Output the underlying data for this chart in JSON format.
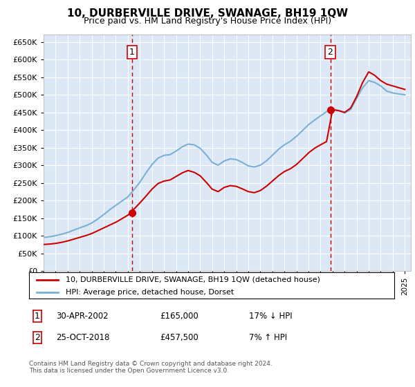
{
  "title": "10, DURBERVILLE DRIVE, SWANAGE, BH19 1QW",
  "subtitle": "Price paid vs. HM Land Registry's House Price Index (HPI)",
  "plot_bg_color": "#dce8f5",
  "ylim": [
    0,
    670000
  ],
  "yticks": [
    0,
    50000,
    100000,
    150000,
    200000,
    250000,
    300000,
    350000,
    400000,
    450000,
    500000,
    550000,
    600000,
    650000
  ],
  "sale1_date": 2002.33,
  "sale1_price": 165000,
  "sale2_date": 2018.81,
  "sale2_price": 457500,
  "legend_line1": "10, DURBERVILLE DRIVE, SWANAGE, BH19 1QW (detached house)",
  "legend_line2": "HPI: Average price, detached house, Dorset",
  "table_row1_num": "1",
  "table_row1_date": "30-APR-2002",
  "table_row1_price": "£165,000",
  "table_row1_hpi": "17% ↓ HPI",
  "table_row2_num": "2",
  "table_row2_date": "25-OCT-2018",
  "table_row2_price": "£457,500",
  "table_row2_hpi": "7% ↑ HPI",
  "footer": "Contains HM Land Registry data © Crown copyright and database right 2024.\nThis data is licensed under the Open Government Licence v3.0.",
  "line_color_red": "#cc0000",
  "line_color_blue": "#7ab0d4",
  "dashed_color": "#cc0000",
  "hpi_years": [
    1995.0,
    1995.5,
    1996.0,
    1996.5,
    1997.0,
    1997.5,
    1998.0,
    1998.5,
    1999.0,
    1999.5,
    2000.0,
    2000.5,
    2001.0,
    2001.5,
    2002.0,
    2002.5,
    2003.0,
    2003.5,
    2004.0,
    2004.5,
    2005.0,
    2005.5,
    2006.0,
    2006.5,
    2007.0,
    2007.5,
    2008.0,
    2008.5,
    2009.0,
    2009.5,
    2010.0,
    2010.5,
    2011.0,
    2011.5,
    2012.0,
    2012.5,
    2013.0,
    2013.5,
    2014.0,
    2014.5,
    2015.0,
    2015.5,
    2016.0,
    2016.5,
    2017.0,
    2017.5,
    2018.0,
    2018.5,
    2019.0,
    2019.5,
    2020.0,
    2020.5,
    2021.0,
    2021.5,
    2022.0,
    2022.5,
    2023.0,
    2023.5,
    2024.0,
    2024.5,
    2025.0
  ],
  "hpi_values": [
    95000,
    97000,
    100000,
    104000,
    109000,
    116000,
    122000,
    128000,
    136000,
    147000,
    160000,
    174000,
    186000,
    198000,
    210000,
    230000,
    252000,
    278000,
    302000,
    320000,
    328000,
    330000,
    340000,
    352000,
    360000,
    358000,
    348000,
    330000,
    308000,
    300000,
    312000,
    318000,
    316000,
    308000,
    298000,
    295000,
    300000,
    312000,
    328000,
    345000,
    358000,
    368000,
    382000,
    398000,
    415000,
    428000,
    440000,
    452000,
    460000,
    455000,
    448000,
    458000,
    490000,
    520000,
    540000,
    535000,
    525000,
    510000,
    505000,
    502000,
    500000
  ],
  "red_values": [
    75000,
    76000,
    78000,
    81000,
    85000,
    90000,
    95000,
    100000,
    106000,
    114000,
    122000,
    130000,
    138000,
    148000,
    158000,
    175000,
    193000,
    212000,
    232000,
    248000,
    255000,
    258000,
    268000,
    278000,
    285000,
    280000,
    270000,
    252000,
    232000,
    225000,
    237000,
    242000,
    240000,
    233000,
    225000,
    222000,
    228000,
    240000,
    255000,
    270000,
    282000,
    290000,
    302000,
    318000,
    335000,
    348000,
    358000,
    367000,
    457500,
    455000,
    450000,
    462000,
    495000,
    535000,
    565000,
    555000,
    540000,
    530000,
    525000,
    520000,
    515000
  ]
}
